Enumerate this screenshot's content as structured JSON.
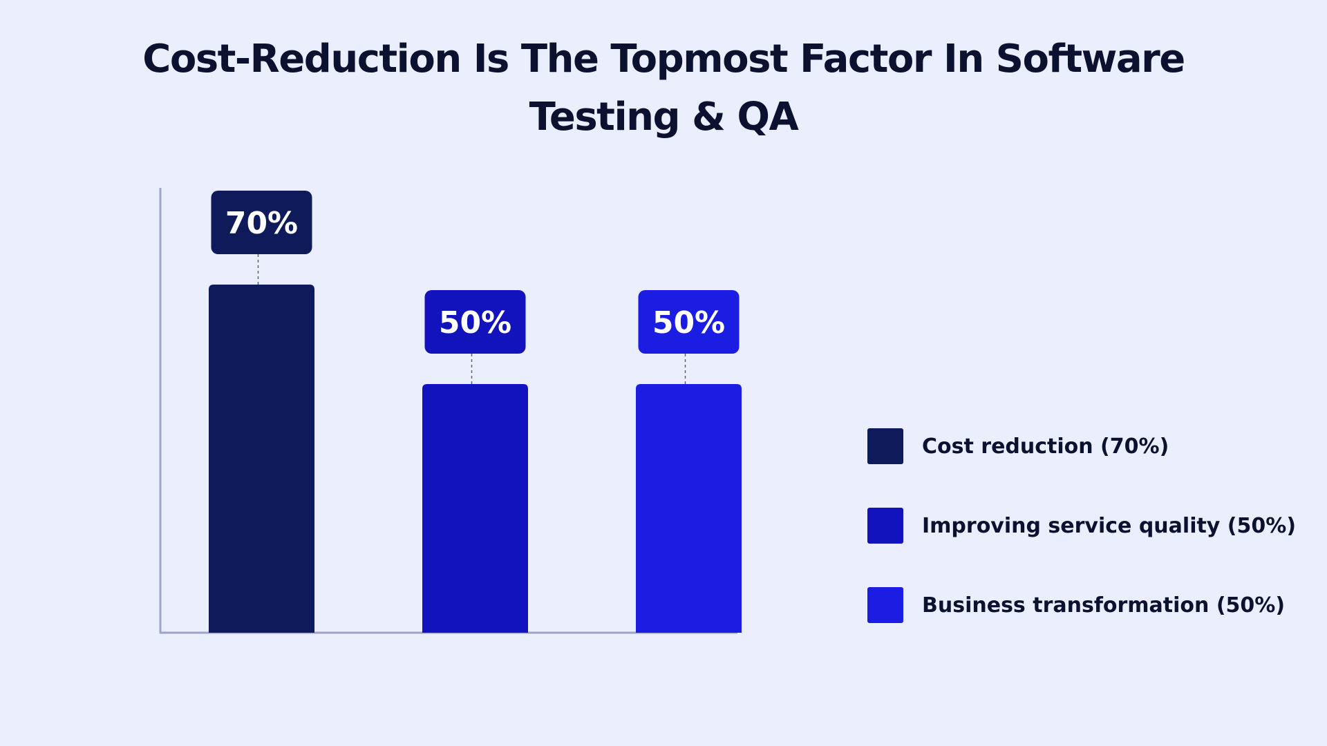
{
  "chart_data": {
    "type": "bar",
    "title": "Cost-Reduction Is The Topmost Factor In Software Testing & QA",
    "title_lines": [
      "Cost-Reduction Is The Topmost Factor In Software",
      "Testing & QA"
    ],
    "categories": [
      "Cost reduction",
      "Improving service quality",
      "Business transformation"
    ],
    "values": [
      70,
      50,
      50
    ],
    "value_labels": [
      "70%",
      "50%",
      "50%"
    ],
    "colors": [
      "#0e1a5a",
      "#1313be",
      "#1c1de2"
    ],
    "ylim": [
      0,
      100
    ],
    "xlabel": "",
    "ylabel": "",
    "grid": false,
    "legend_position": "right",
    "legend": [
      {
        "label": "Cost reduction (70%)",
        "color": "#0e1a5a"
      },
      {
        "label": "Improving service quality (50%)",
        "color": "#1313be"
      },
      {
        "label": "Business transformation (50%)",
        "color": "#1c1de2"
      }
    ]
  },
  "colors": {
    "background": "#ebeefd",
    "title": "#0d1130",
    "axis": "#9fa3c9"
  }
}
